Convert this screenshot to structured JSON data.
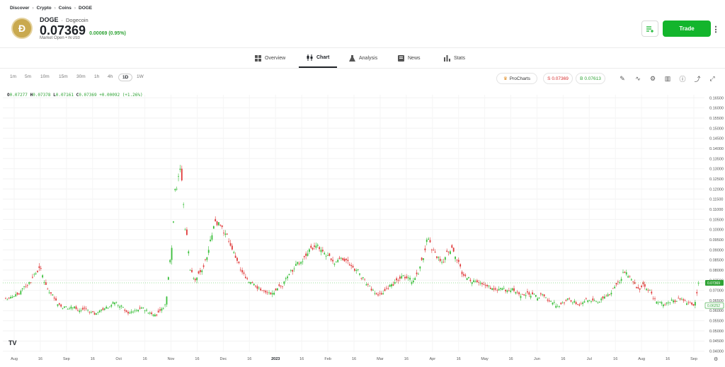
{
  "breadcrumb": [
    "Discover",
    "Crypto",
    "Coins",
    "DOGE"
  ],
  "asset": {
    "symbol": "DOGE",
    "name": "Dogecoin",
    "price": "0.07369",
    "change": "0.00069 (0.95%)",
    "market_status": "Market Open",
    "currency": "IN USD"
  },
  "actions": {
    "trade_label": "Trade"
  },
  "tabs": [
    {
      "label": "Overview",
      "icon": "overview-icon"
    },
    {
      "label": "Chart",
      "icon": "candlestick-icon"
    },
    {
      "label": "Analysis",
      "icon": "flask-icon"
    },
    {
      "label": "News",
      "icon": "news-icon"
    },
    {
      "label": "Stats",
      "icon": "stats-icon"
    }
  ],
  "timeframes": [
    "1m",
    "5m",
    "10m",
    "15m",
    "30m",
    "1h",
    "4h",
    "1D",
    "1W"
  ],
  "active_timeframe": "1D",
  "prochart_label": "ProCharts",
  "sell_label": "S 0.07369",
  "buy_label": "B 0.07613",
  "ohlc": {
    "o": "0.07277",
    "h": "0.07378",
    "l": "0.07161",
    "c": "0.07369",
    "chg": "+0.00092 (+1.26%)"
  },
  "chart_data": {
    "type": "candlestick",
    "y_ticks": [
      "0.16500",
      "0.16000",
      "0.15500",
      "0.15000",
      "0.14500",
      "0.14000",
      "0.13500",
      "0.13000",
      "0.12500",
      "0.12000",
      "0.11500",
      "0.11000",
      "0.10500",
      "0.10000",
      "0.09500",
      "0.09000",
      "0.08500",
      "0.08000",
      "0.07500",
      "0.07000",
      "0.06500",
      "0.06000",
      "0.05500",
      "0.05000",
      "0.04500",
      "0.04000"
    ],
    "ylim": [
      0.0395,
      0.1665
    ],
    "x_ticks": [
      "Aug",
      "16",
      "Sep",
      "16",
      "Oct",
      "16",
      "Nov",
      "16",
      "Dec",
      "16",
      "2023",
      "16",
      "Feb",
      "16",
      "Mar",
      "16",
      "Apr",
      "16",
      "May",
      "16",
      "Jun",
      "16",
      "Jul",
      "16",
      "Aug",
      "16",
      "Sep"
    ],
    "current_price_label": "0.07369",
    "secondary_price_label": "0.06252",
    "close_series": [
      0.066,
      0.067,
      0.068,
      0.072,
      0.074,
      0.078,
      0.081,
      0.074,
      0.069,
      0.066,
      0.063,
      0.062,
      0.061,
      0.062,
      0.06,
      0.061,
      0.059,
      0.058,
      0.06,
      0.061,
      0.062,
      0.064,
      0.062,
      0.06,
      0.059,
      0.06,
      0.061,
      0.06,
      0.059,
      0.058,
      0.06,
      0.063,
      0.085,
      0.12,
      0.13,
      0.1,
      0.08,
      0.075,
      0.079,
      0.085,
      0.095,
      0.104,
      0.102,
      0.098,
      0.092,
      0.086,
      0.08,
      0.076,
      0.074,
      0.072,
      0.07,
      0.069,
      0.068,
      0.07,
      0.072,
      0.076,
      0.08,
      0.083,
      0.084,
      0.087,
      0.091,
      0.092,
      0.09,
      0.087,
      0.085,
      0.084,
      0.086,
      0.085,
      0.082,
      0.08,
      0.076,
      0.073,
      0.07,
      0.068,
      0.068,
      0.071,
      0.073,
      0.075,
      0.077,
      0.076,
      0.074,
      0.078,
      0.085,
      0.095,
      0.09,
      0.086,
      0.084,
      0.089,
      0.091,
      0.085,
      0.078,
      0.076,
      0.074,
      0.074,
      0.073,
      0.072,
      0.071,
      0.07,
      0.071,
      0.07,
      0.071,
      0.069,
      0.068,
      0.069,
      0.068,
      0.066,
      0.068,
      0.065,
      0.064,
      0.062,
      0.064,
      0.066,
      0.064,
      0.063,
      0.064,
      0.065,
      0.065,
      0.064,
      0.066,
      0.068,
      0.071,
      0.074,
      0.079,
      0.077,
      0.074,
      0.071,
      0.073,
      0.07,
      0.066,
      0.064,
      0.063,
      0.064,
      0.065,
      0.066,
      0.065,
      0.064,
      0.06252,
      0.07369
    ]
  }
}
